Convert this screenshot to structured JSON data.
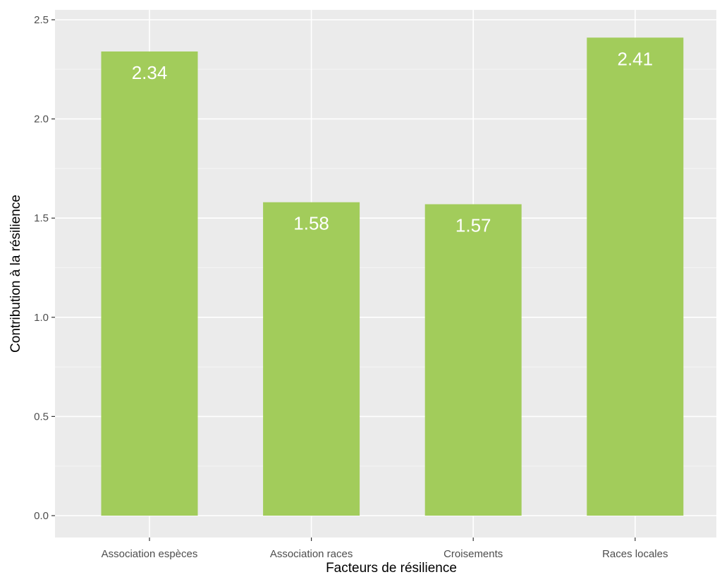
{
  "chart_data": {
    "type": "bar",
    "title": "",
    "xlabel": "Facteurs de résilience",
    "ylabel": "Contribution à la résilience",
    "categories": [
      "Association espèces",
      "Association races",
      "Croisements",
      "Races locales"
    ],
    "values": [
      2.34,
      1.58,
      1.57,
      2.41
    ],
    "data_labels": [
      "2.34",
      "1.58",
      "1.57",
      "2.41"
    ],
    "y_ticks": [
      0.0,
      0.5,
      1.0,
      1.5,
      2.0,
      2.5
    ],
    "y_tick_labels": [
      "0.0",
      "0.5",
      "1.0",
      "1.5",
      "2.0",
      "2.5"
    ],
    "ylim": [
      -0.1,
      2.51
    ],
    "grid": true,
    "legend": "none",
    "colors": {
      "bar": "#a2cc5b",
      "panel_background": "#ebebeb",
      "grid_major": "#ffffff",
      "grid_minor": "#f5f5f5",
      "bar_label": "#ffffff"
    }
  }
}
